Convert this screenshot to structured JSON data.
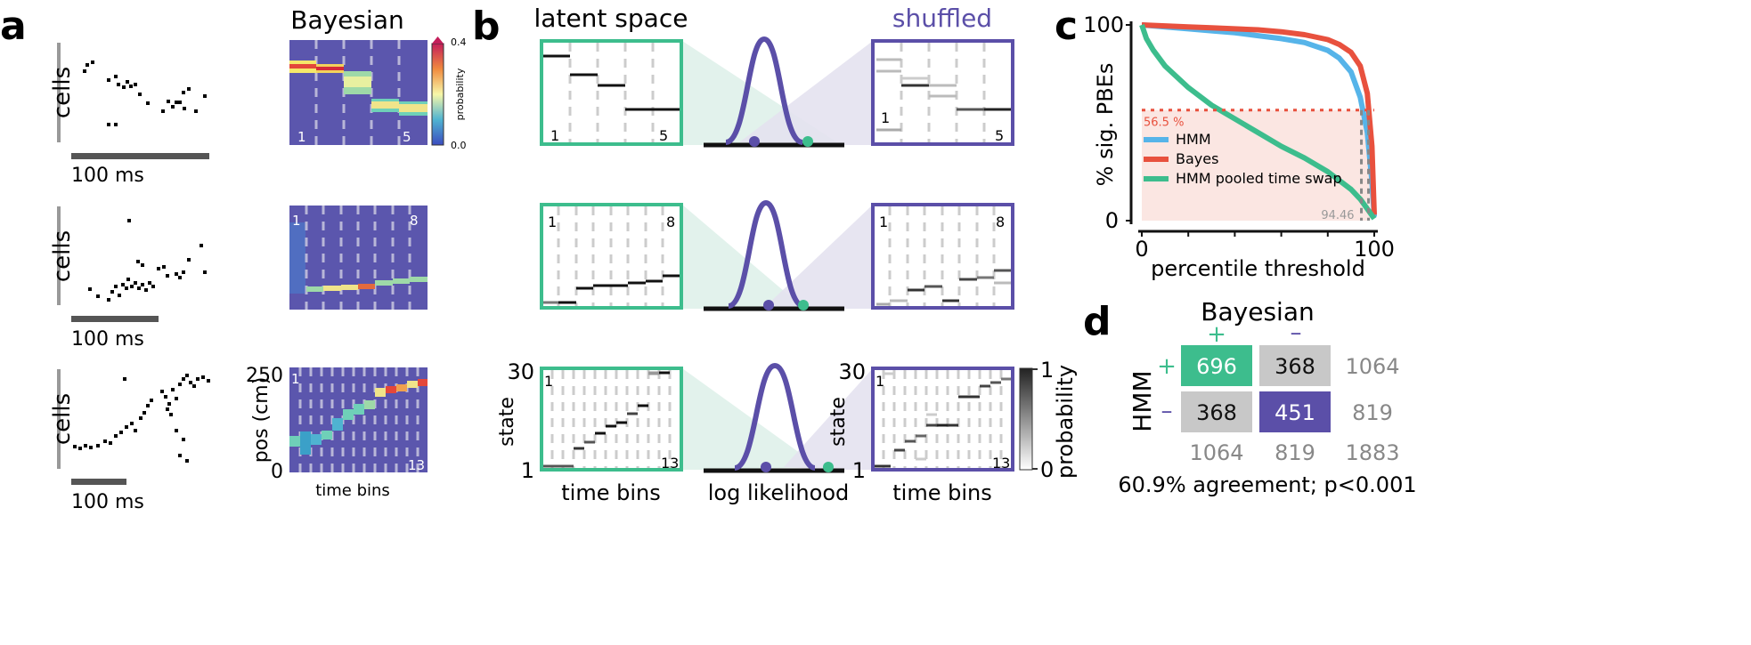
{
  "panels": {
    "a": {
      "letter": "a",
      "ylabel": "cells",
      "scale_label": "100 ms",
      "title": "Bayesian",
      "colorbar": {
        "label": "probability",
        "ticks": [
          "0.4",
          "0.0"
        ]
      },
      "heatmap_labels": [
        [
          "1",
          "5"
        ],
        [
          "1",
          "8"
        ],
        [
          "1",
          "13"
        ]
      ],
      "bottom_ylabel": "pos (cm)",
      "bottom_yticks": [
        "250",
        "0"
      ],
      "bottom_xlabel": "time bins",
      "colors": {
        "heatmap_bg": "#5b56ad",
        "high": "#d93d3d"
      }
    },
    "b": {
      "letter": "b",
      "titles": {
        "left": "latent space",
        "right": "shuffled"
      },
      "row_labels": [
        [
          "1",
          "5"
        ],
        [
          "1",
          "8"
        ],
        [
          "1",
          "13"
        ]
      ],
      "shuffled_labels": [
        [
          "1",
          "5"
        ],
        [
          "1",
          "8"
        ],
        [
          "1",
          "13"
        ]
      ],
      "ylabel": "state",
      "yticks": [
        "30",
        "1"
      ],
      "xlabel": "time bins",
      "middle_xlabel": "log likelihood",
      "colorbar": {
        "label": "probability",
        "ticks": [
          "1",
          "0"
        ]
      },
      "colors": {
        "latent": "#3dbd8d",
        "shuffled": "#5b4fa8"
      }
    },
    "c": {
      "letter": "c",
      "annotation_y": "56.5 %",
      "annotation_x": "94.46"
    },
    "d": {
      "letter": "d",
      "col_title": "Bayesian",
      "row_title": "HMM",
      "col_signs": [
        "+",
        "–"
      ],
      "row_signs": [
        "+",
        "–"
      ],
      "cells": [
        [
          "696",
          "368"
        ],
        [
          "368",
          "451"
        ]
      ],
      "row_totals": [
        "1064",
        "819"
      ],
      "col_totals": [
        "1064",
        "819",
        "1883"
      ],
      "caption": "60.9% agreement; p<0.001",
      "colors": {
        "agree_pos": "#3dbd8d",
        "agree_neg": "#5b4fa8",
        "disagree": "#c8c8c8"
      }
    }
  },
  "chart_data": {
    "type": "line",
    "ylabel": "% sig. PBEs",
    "xlabel": "percentile threshold",
    "xticks": [
      "0",
      "100"
    ],
    "yticks": [
      "100",
      "0"
    ],
    "xlim": [
      0,
      100
    ],
    "ylim": [
      0,
      100
    ],
    "legend_position": "center-left",
    "series": [
      {
        "name": "HMM",
        "color": "#56b4e9",
        "x": [
          0,
          10,
          20,
          30,
          40,
          50,
          60,
          70,
          80,
          85,
          90,
          94,
          97,
          99,
          100
        ],
        "y": [
          100,
          99,
          98,
          97,
          96,
          94.5,
          93,
          91,
          87,
          83,
          76,
          63,
          45,
          20,
          2
        ]
      },
      {
        "name": "Bayes",
        "color": "#e8513e",
        "x": [
          0,
          10,
          20,
          30,
          40,
          50,
          60,
          70,
          80,
          85,
          90,
          94,
          97,
          99,
          100
        ],
        "y": [
          100,
          99.5,
          99,
          98.5,
          98,
          97.5,
          96.5,
          95,
          92.5,
          90,
          86,
          79,
          65,
          38,
          3
        ]
      },
      {
        "name": "HMM pooled time swap",
        "color": "#3dbd8d",
        "x": [
          0,
          2,
          5,
          10,
          20,
          30,
          40,
          50,
          60,
          70,
          80,
          90,
          94,
          97,
          100
        ],
        "y": [
          100,
          93,
          87,
          79,
          68,
          59,
          52,
          45,
          38,
          32,
          25,
          16,
          11,
          6,
          1
        ]
      }
    ],
    "threshold_y": 56.5,
    "threshold_x": 94.46
  }
}
